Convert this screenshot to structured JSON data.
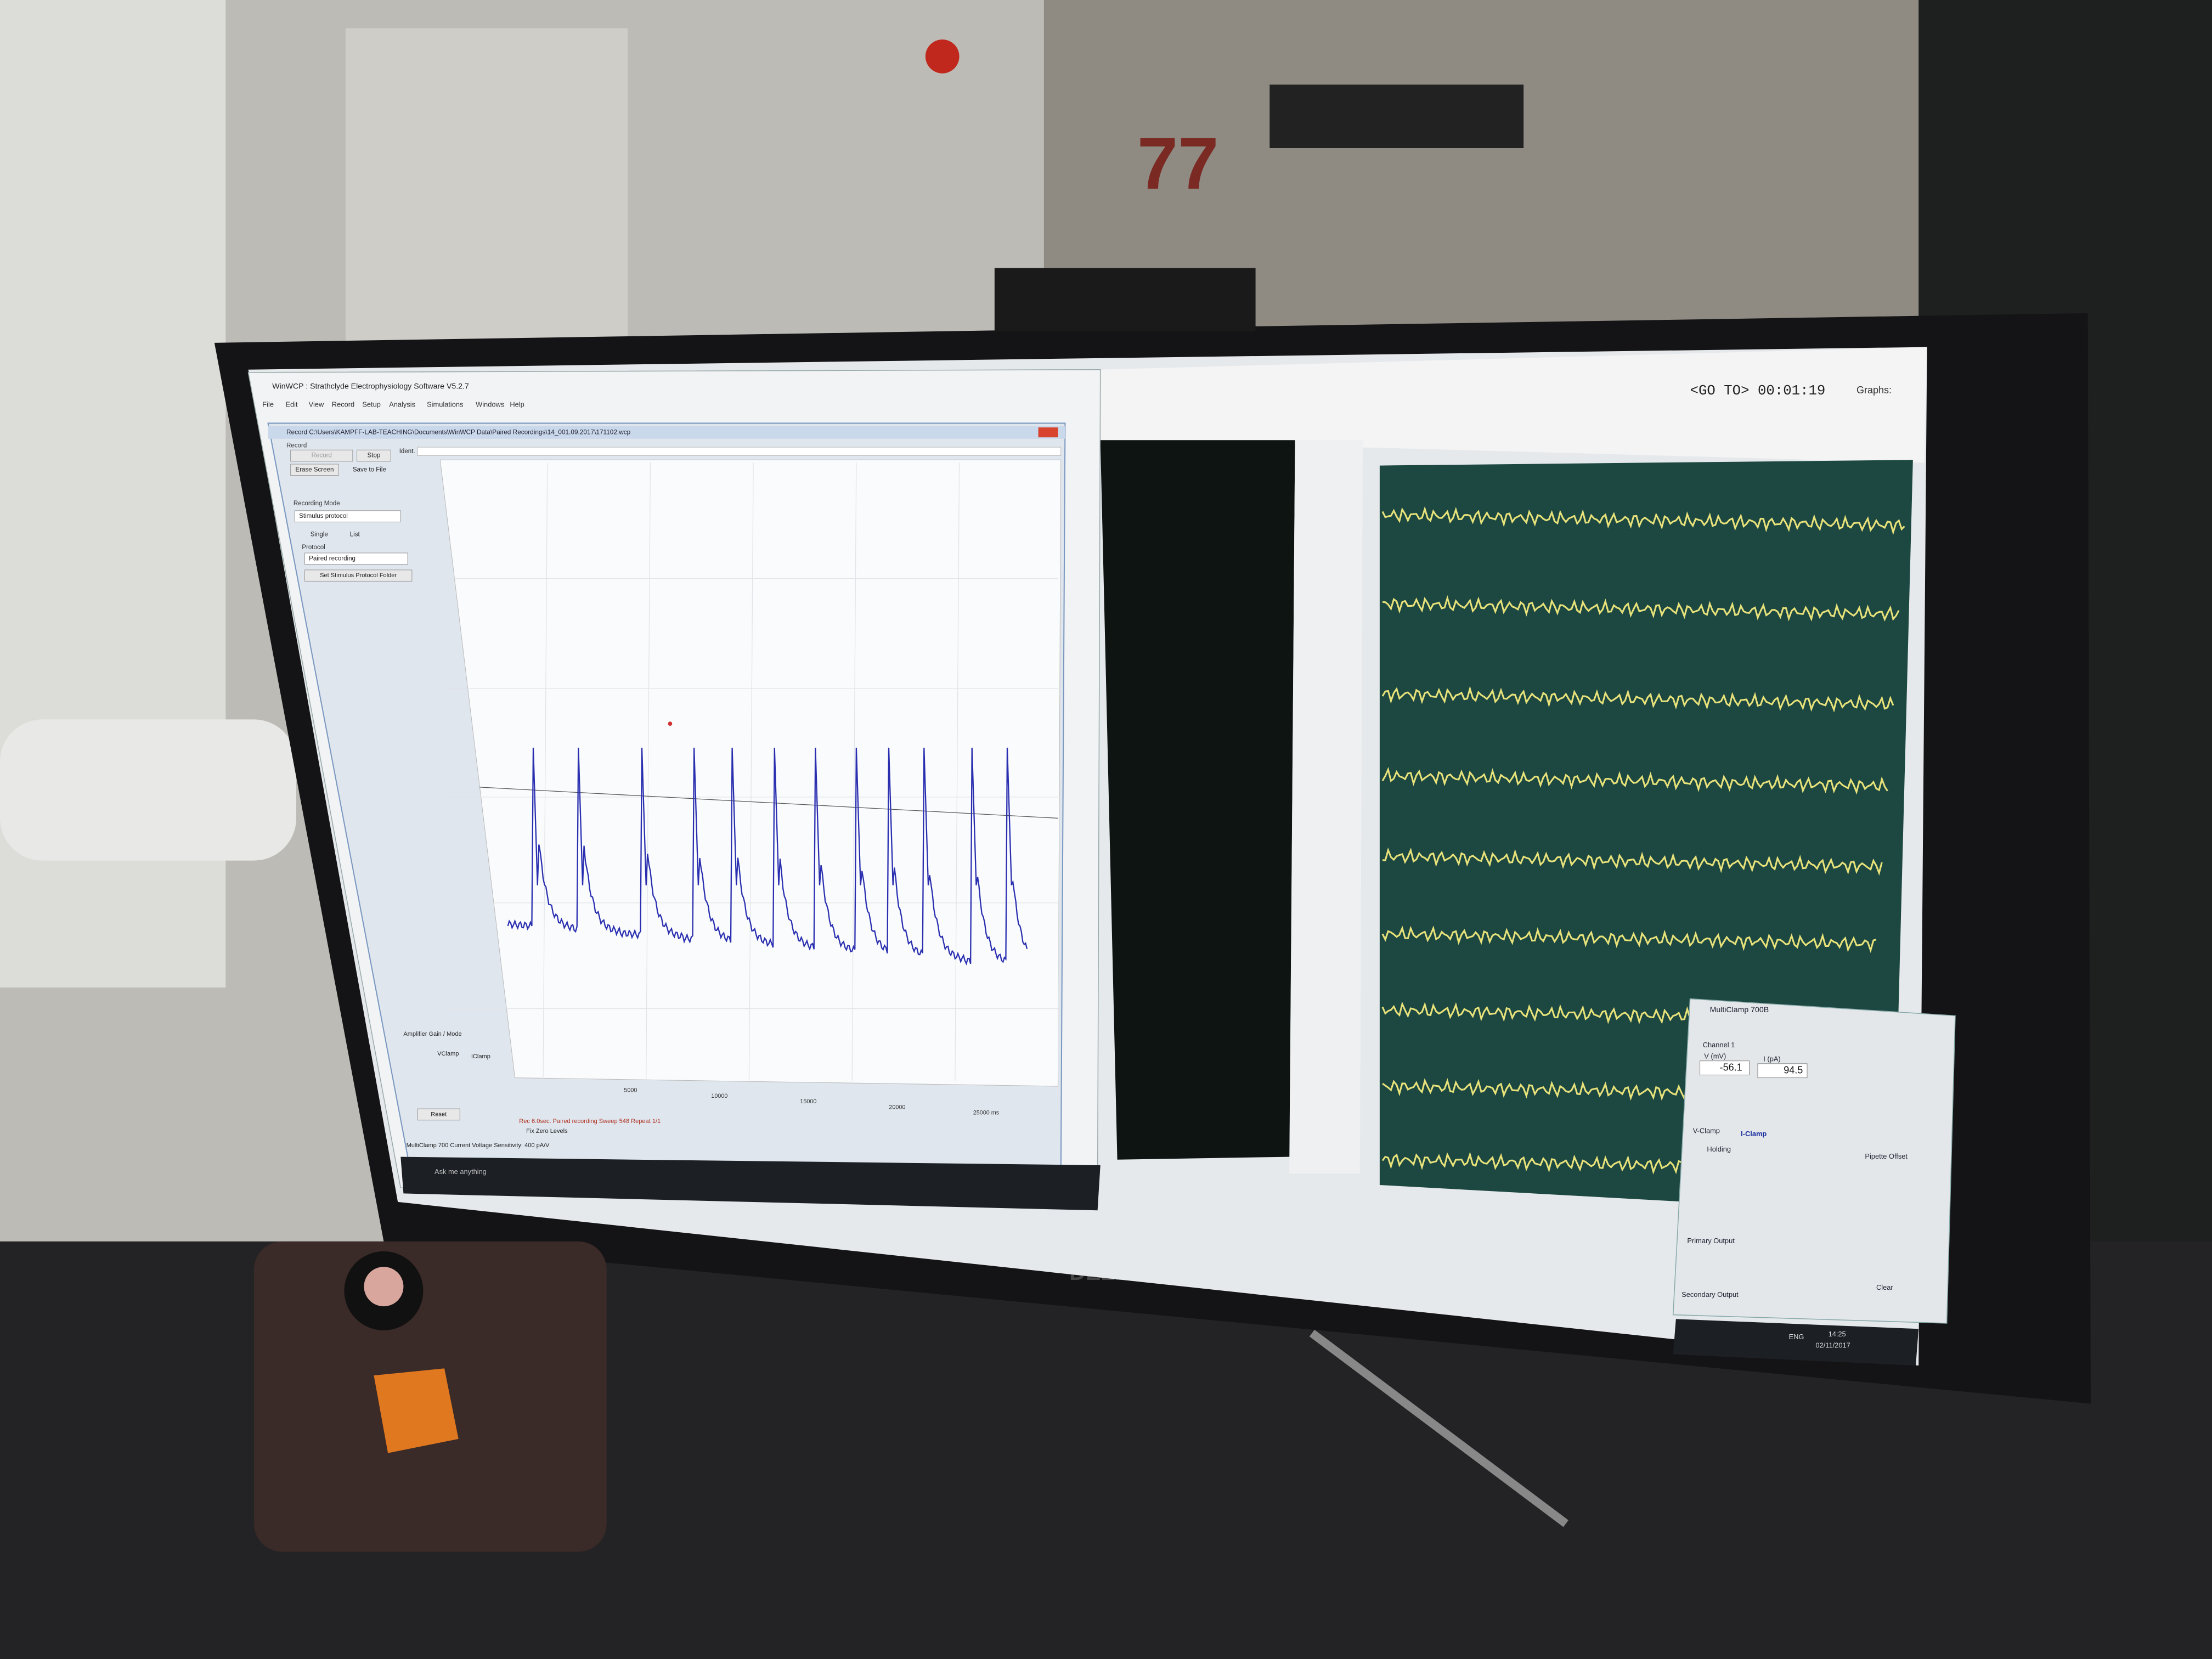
{
  "room": {
    "door_sign": "77"
  },
  "monitor": {
    "brand": "DELL"
  },
  "winwcp": {
    "app_title": "WinWCP : Strathclyde Electrophysiology Software V5.2.7",
    "menu": [
      "File",
      "Edit",
      "View",
      "Record",
      "Setup",
      "Analysis",
      "Simulations",
      "Windows",
      "Help"
    ],
    "record_window_title": "Record C:\\Users\\KAMPFF-LAB-TEACHING\\Documents\\WinWCP Data\\Paired Recordings\\14_001.09.2017\\171102.wcp",
    "record_group": "Record",
    "buttons": [
      "Record",
      "Stop",
      "Erase Screen",
      "Save to File"
    ],
    "ident": "Ident.",
    "recording_mode": "Recording Mode",
    "mode_value": "Stimulus protocol",
    "single": "Single",
    "list": "List",
    "protocol": "Protocol",
    "protocol_value": "Paired recording",
    "set_folder": "Set Stimulus Protocol Folder",
    "amplifier": "Amplifier Gain / Mode",
    "vclamp": "VClamp",
    "iclamp": "IClamp",
    "reset": "Reset",
    "x_ticks": [
      "5000",
      "10000",
      "15000",
      "20000",
      "25000 ms"
    ],
    "status": "Rec 6.0sec. Paired recording Sweep 548 Repeat 1/1",
    "zero_levels": "Fix Zero Levels",
    "footer": "MultiClamp 700 Current Voltage Sensitivity: 400 pA/V",
    "search": "Ask me anything"
  },
  "viewer": {
    "timer": "<GO TO> 00:01:19",
    "graphs": "Graphs:"
  },
  "multiclamp": {
    "title": "MultiClamp 700B",
    "channel": "Channel 1",
    "v_label": "V (mV)",
    "i_label": "I (pA)",
    "v_value": "-56.1",
    "i_value": "94.5",
    "vclamp": "V-Clamp",
    "iclamp": "I-Clamp",
    "holding": "Holding",
    "pipette_offset": "Pipette Offset",
    "primary_output": "Primary Output",
    "secondary_output": "Secondary Output",
    "clear": "Clear"
  },
  "taskbar": {
    "language": "ENG",
    "time": "14:25",
    "date": "02/11/2017"
  }
}
